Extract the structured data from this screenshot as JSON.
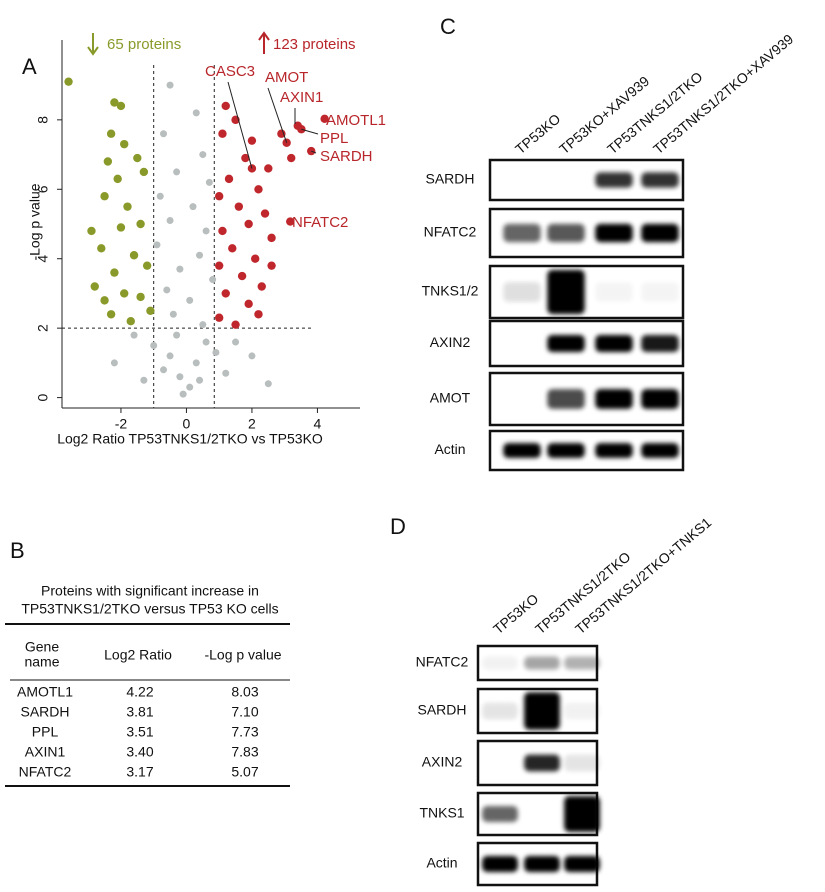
{
  "panels": {
    "a": "A",
    "b": "B",
    "c": "C",
    "d": "D"
  },
  "chart_data": {
    "type": "scatter",
    "xlabel": "Log2 Ratio TP53TNKS1/2TKO vs TP53KO",
    "ylabel": "-Log p value",
    "xlim": [
      -3.8,
      5.3
    ],
    "ylim": [
      -0.3,
      10.3
    ],
    "xticks": [
      -2,
      0,
      2,
      4
    ],
    "yticks": [
      0,
      2,
      4,
      6,
      8
    ],
    "threshold_x": [
      -1,
      0.85
    ],
    "threshold_y": 2,
    "down_label": "65 proteins",
    "up_label": "123 proteins",
    "series": [
      {
        "color": "#b8bdbd",
        "x": [
          -0.5,
          0.3,
          -0.7,
          0.5,
          -0.3,
          0.7,
          -0.8,
          0.2,
          -0.5,
          0.6,
          -0.9,
          0.4,
          -0.2,
          0.8,
          -0.6,
          0.1,
          -0.4,
          0.5,
          -1.6,
          -1.0,
          -0.5,
          0.3,
          0.9,
          1.5,
          2.0,
          -2.2,
          -0.2,
          0.1,
          -0.1,
          0.4,
          -0.7,
          1.2,
          -1.3,
          2.5,
          -0.3,
          0.6
        ],
        "values": [
          9.0,
          8.2,
          7.6,
          7.0,
          6.5,
          6.2,
          5.8,
          5.5,
          5.1,
          4.8,
          4.4,
          4.1,
          3.7,
          3.4,
          3.1,
          2.8,
          2.4,
          2.1,
          1.8,
          1.5,
          1.2,
          1.0,
          1.3,
          1.6,
          1.2,
          1.0,
          0.6,
          0.3,
          0.1,
          0.5,
          0.8,
          0.7,
          0.5,
          0.4,
          1.8,
          1.6
        ]
      },
      {
        "color": "#8a9a2a",
        "x": [
          -3.6,
          -2.2,
          -2.0,
          -2.3,
          -1.9,
          -2.4,
          -1.5,
          -2.1,
          -1.3,
          -2.5,
          -1.8,
          -2.9,
          -2.0,
          -1.4,
          -2.6,
          -1.6,
          -2.2,
          -1.2,
          -2.8,
          -1.9,
          -1.4,
          -2.3,
          -1.7,
          -1.1,
          -2.5
        ],
        "values": [
          9.1,
          8.5,
          8.4,
          7.6,
          7.3,
          6.8,
          6.9,
          6.3,
          6.5,
          5.8,
          5.5,
          4.8,
          4.9,
          5.0,
          4.3,
          4.1,
          3.6,
          3.8,
          3.2,
          3.0,
          2.9,
          2.4,
          2.2,
          2.5,
          2.8
        ]
      },
      {
        "color": "#c0272d",
        "x": [
          1.2,
          1.5,
          1.1,
          2.0,
          1.8,
          2.5,
          1.3,
          2.2,
          1.0,
          1.6,
          2.4,
          1.9,
          1.1,
          2.6,
          1.4,
          2.1,
          1.0,
          1.7,
          2.3,
          1.2,
          1.9,
          1.0,
          1.5,
          2.2,
          2.9,
          3.2,
          2.6
        ],
        "values": [
          8.4,
          8.0,
          7.6,
          7.4,
          6.9,
          6.6,
          6.3,
          6.0,
          5.8,
          5.5,
          5.3,
          5.0,
          4.8,
          4.6,
          4.3,
          4.0,
          3.8,
          3.5,
          3.2,
          3.0,
          2.7,
          2.3,
          2.1,
          2.4,
          7.6,
          6.9,
          3.8
        ]
      }
    ],
    "annotations": [
      {
        "text": "CASC3",
        "x": 2.0,
        "y": 6.6
      },
      {
        "text": "AMOT",
        "x": 3.06,
        "y": 7.34
      },
      {
        "text": "AXIN1",
        "x": 3.4,
        "y": 7.83
      },
      {
        "text": "AMOTL1",
        "x": 4.22,
        "y": 8.03
      },
      {
        "text": "PPL",
        "x": 3.51,
        "y": 7.73
      },
      {
        "text": "SARDH",
        "x": 3.81,
        "y": 7.1
      },
      {
        "text": "NFATC2",
        "x": 3.17,
        "y": 5.07
      }
    ]
  },
  "table": {
    "title": [
      "Proteins with significant increase in",
      "TP53TNKS1/2TKO versus TP53 KO cells"
    ],
    "header": [
      [
        "Gene",
        "name"
      ],
      "Log2 Ratio",
      "-Log p value"
    ],
    "rows": [
      [
        "AMOTL1",
        "4.22",
        "8.03"
      ],
      [
        "SARDH",
        "3.81",
        "7.10"
      ],
      [
        "PPL",
        "3.51",
        "7.73"
      ],
      [
        "AXIN1",
        "3.40",
        "7.83"
      ],
      [
        "NFATC2",
        "3.17",
        "5.07"
      ]
    ]
  },
  "blot_c": {
    "lanes": [
      "TP53KO",
      "TP53KO+XAV939",
      "TP53TNKS1/2TKO",
      "TP53TNKS1/2TKO+XAV939"
    ],
    "rows": [
      "SARDH",
      "NFATC2",
      "TNKS1/2",
      "AXIN2",
      "AMOT",
      "Actin"
    ]
  },
  "blot_d": {
    "lanes": [
      "TP53KO",
      "TP53TNKS1/2TKO",
      "TP53TNKS1/2TKO+TNKS1"
    ],
    "rows": [
      "NFATC2",
      "SARDH",
      "AXIN2",
      "TNKS1",
      "Actin"
    ]
  }
}
